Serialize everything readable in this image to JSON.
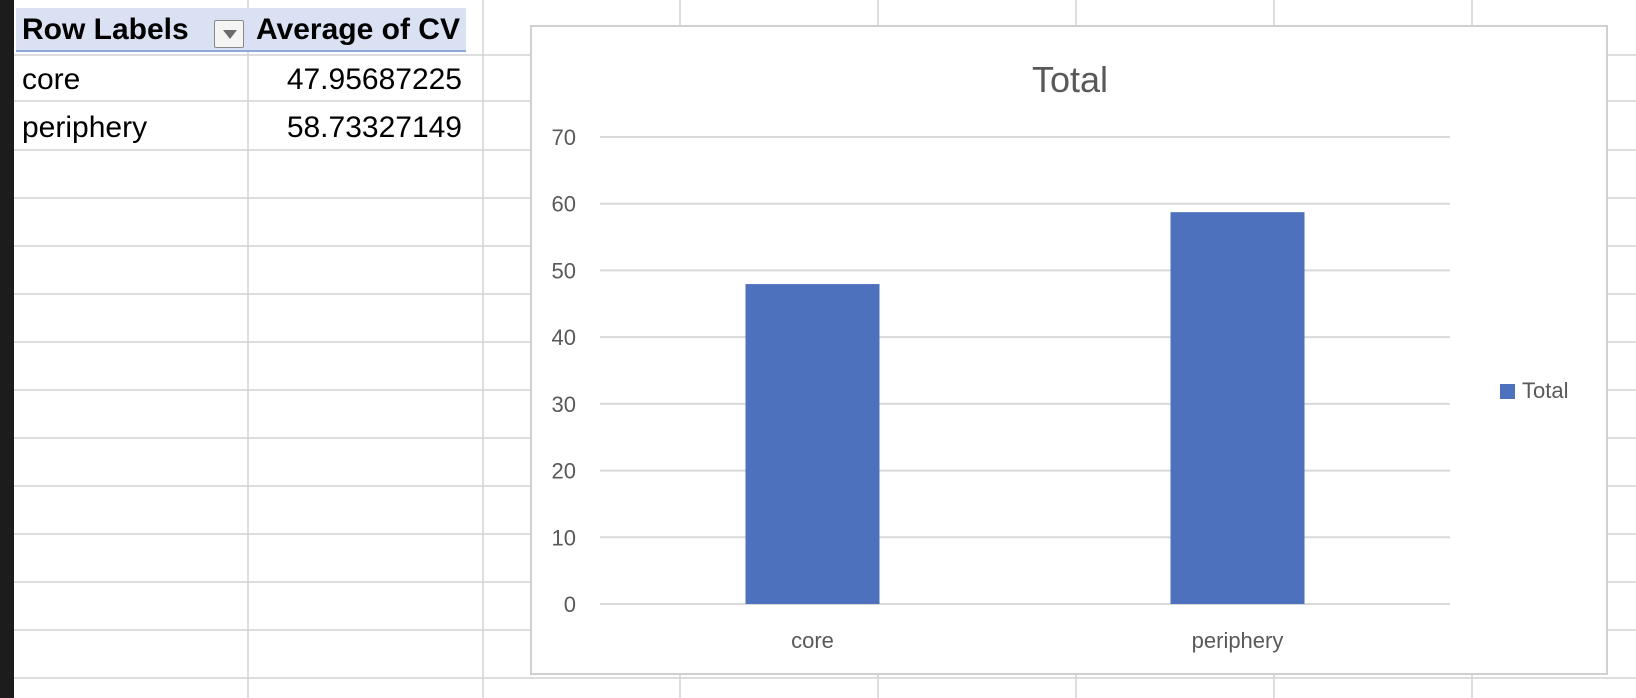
{
  "pivot": {
    "headers": [
      "Row Labels",
      "Average of CV"
    ],
    "rows": [
      {
        "label": "core",
        "value": "47.95687225"
      },
      {
        "label": "periphery",
        "value": "58.73327149"
      }
    ]
  },
  "colors": {
    "bar": "#4e71be",
    "grid": "#d9d9d9",
    "header_fill": "#d9e1f2"
  },
  "chart_data": {
    "type": "bar",
    "title": "Total",
    "categories": [
      "core",
      "periphery"
    ],
    "series": [
      {
        "name": "Total",
        "values": [
          47.95687225,
          58.73327149
        ]
      }
    ],
    "ylim": [
      0,
      70
    ],
    "yticks": [
      0,
      10,
      20,
      30,
      40,
      50,
      60,
      70
    ],
    "grid": true,
    "legend": "right"
  }
}
